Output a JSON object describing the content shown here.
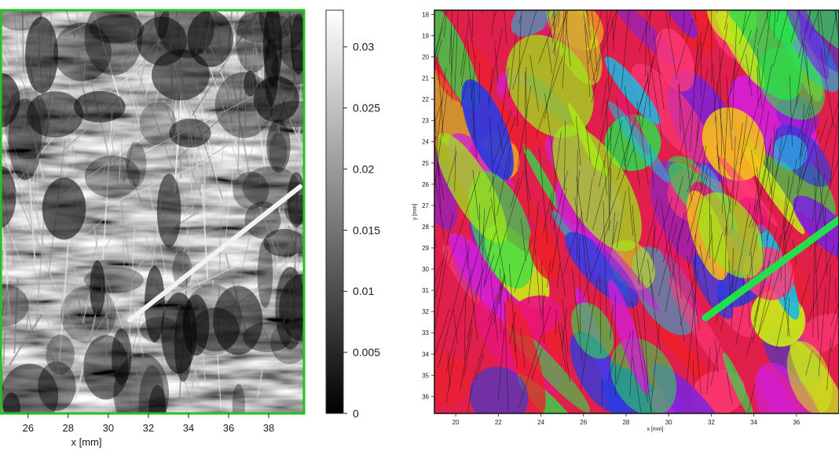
{
  "left_panel": {
    "type": "heatmap",
    "colormap": "grayscale",
    "frame_color": "#22c222",
    "xlabel": "x [mm]",
    "x_ticks": [
      "26",
      "28",
      "30",
      "32",
      "34",
      "36",
      "38"
    ],
    "colorbar": {
      "ticks": [
        "0.03",
        "0.025",
        "0.02",
        "0.015",
        "0.01",
        "0.005",
        "0"
      ],
      "range": [
        0,
        0.033
      ]
    }
  },
  "right_panel": {
    "type": "heatmap",
    "colormap": "hue (red, magenta, blue, cyan, green, yellow)",
    "xlabel": "x [mm]",
    "ylabel": "y [mm]",
    "x_ticks": [
      "20",
      "22",
      "24",
      "26",
      "28",
      "30",
      "32",
      "34",
      "36"
    ],
    "y_ticks": [
      "18",
      "19",
      "20",
      "21",
      "22",
      "23",
      "24",
      "25",
      "26",
      "27",
      "28",
      "29",
      "30",
      "31",
      "32",
      "33",
      "34",
      "35",
      "36"
    ]
  },
  "chart_data": [
    {
      "type": "heatmap",
      "xlabel": "x [mm]",
      "x_ticks": [
        26,
        28,
        30,
        32,
        34,
        36,
        38
      ],
      "xlim": [
        24.6,
        39.8
      ],
      "colorbar_ticks": [
        0,
        0.005,
        0.01,
        0.015,
        0.02,
        0.025,
        0.03
      ],
      "clim": [
        0,
        0.033
      ],
      "colormap": "gray"
    },
    {
      "type": "heatmap",
      "xlabel": "x [mm]",
      "ylabel": "y [mm]",
      "x_ticks": [
        20,
        22,
        24,
        26,
        28,
        30,
        32,
        34,
        36
      ],
      "y_ticks": [
        18,
        19,
        20,
        21,
        22,
        23,
        24,
        25,
        26,
        27,
        28,
        29,
        30,
        31,
        32,
        33,
        34,
        35,
        36
      ],
      "xlim": [
        19,
        38
      ],
      "ylim": [
        36.8,
        17.8
      ],
      "colormap": "hsv"
    }
  ]
}
